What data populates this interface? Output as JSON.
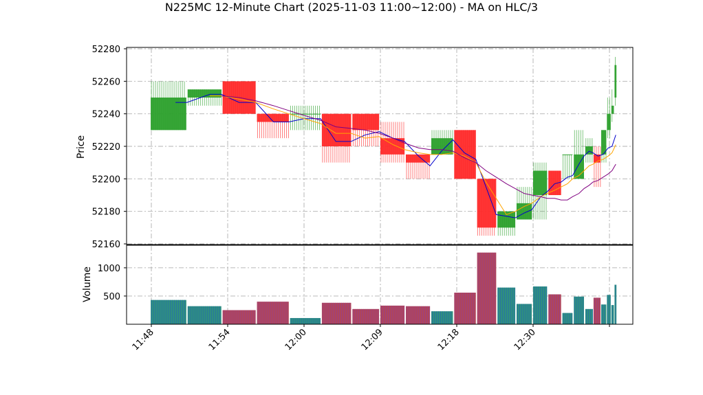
{
  "chart_data": {
    "type": "candlestick",
    "title": "N225MC 12-Minute Chart (2025-11-03 11:00~12:00) - MA on HLC/3",
    "price_axis": {
      "label": "Price",
      "ylim": [
        52160,
        52280
      ],
      "ticks": [
        52160,
        52180,
        52200,
        52220,
        52240,
        52260,
        52280
      ]
    },
    "volume_axis": {
      "label": "Volume",
      "ylim": [
        0,
        1400
      ],
      "ticks": [
        500,
        1000
      ]
    },
    "x_ticks": [
      {
        "x": 0,
        "label": "11:48"
      },
      {
        "x": 6,
        "label": "11:54"
      },
      {
        "x": 12,
        "label": "12:00"
      },
      {
        "x": 18,
        "label": "12:09"
      },
      {
        "x": 24,
        "label": "12:18"
      },
      {
        "x": 30,
        "label": "12:30"
      },
      {
        "x": 36,
        "label": ""
      }
    ],
    "grid": true,
    "colors": {
      "up": "#2ca02c",
      "down": "#ff2a2a",
      "ma_short": "#0000cc",
      "ma_mid": "#ffa500",
      "ma_long": "#800080",
      "vol_up": "#2f8f7f",
      "vol_down": "#b0455a"
    },
    "candles": [
      {
        "x0": -0.05,
        "x1": 2.75,
        "open": 52230,
        "high": 52260,
        "low": 52230,
        "close": 52250
      },
      {
        "x0": 2.85,
        "x1": 5.5,
        "open": 52250,
        "high": 52255,
        "low": 52245,
        "close": 52255
      },
      {
        "x0": 5.6,
        "x1": 8.2,
        "open": 52260,
        "high": 52260,
        "low": 52240,
        "close": 52240
      },
      {
        "x0": 8.3,
        "x1": 10.8,
        "open": 52240,
        "high": 52240,
        "low": 52225,
        "close": 52235
      },
      {
        "x0": 10.9,
        "x1": 13.3,
        "open": 52240,
        "high": 52245,
        "low": 52230,
        "close": 52240
      },
      {
        "x0": 13.4,
        "x1": 15.7,
        "open": 52240,
        "high": 52240,
        "low": 52210,
        "close": 52220
      },
      {
        "x0": 15.8,
        "x1": 17.9,
        "open": 52240,
        "high": 52240,
        "low": 52220,
        "close": 52230
      },
      {
        "x0": 18.0,
        "x1": 19.9,
        "open": 52225,
        "high": 52235,
        "low": 52210,
        "close": 52215
      },
      {
        "x0": 20.0,
        "x1": 21.9,
        "open": 52215,
        "high": 52215,
        "low": 52200,
        "close": 52210
      },
      {
        "x0": 22.0,
        "x1": 23.7,
        "open": 52215,
        "high": 52230,
        "low": 52215,
        "close": 52225
      },
      {
        "x0": 23.8,
        "x1": 25.5,
        "open": 52230,
        "high": 52230,
        "low": 52200,
        "close": 52200
      },
      {
        "x0": 25.6,
        "x1": 27.1,
        "open": 52200,
        "high": 52200,
        "low": 52165,
        "close": 52170
      },
      {
        "x0": 27.2,
        "x1": 28.6,
        "open": 52170,
        "high": 52180,
        "low": 52165,
        "close": 52180
      },
      {
        "x0": 28.7,
        "x1": 29.9,
        "open": 52175,
        "high": 52195,
        "low": 52175,
        "close": 52185
      },
      {
        "x0": 30.0,
        "x1": 31.1,
        "open": 52190,
        "high": 52210,
        "low": 52175,
        "close": 52205
      },
      {
        "x0": 31.2,
        "x1": 32.2,
        "open": 52205,
        "high": 52205,
        "low": 52190,
        "close": 52190
      },
      {
        "x0": 32.3,
        "x1": 33.1,
        "open": 52215,
        "high": 52215,
        "low": 52200,
        "close": 52215
      },
      {
        "x0": 33.2,
        "x1": 34.0,
        "open": 52200,
        "high": 52230,
        "low": 52200,
        "close": 52215
      },
      {
        "x0": 34.1,
        "x1": 34.7,
        "open": 52215,
        "high": 52225,
        "low": 52210,
        "close": 52220
      },
      {
        "x0": 34.75,
        "x1": 35.3,
        "open": 52215,
        "high": 52220,
        "low": 52195,
        "close": 52210
      },
      {
        "x0": 35.35,
        "x1": 35.75,
        "open": 52215,
        "high": 52230,
        "low": 52210,
        "close": 52230
      },
      {
        "x0": 35.8,
        "x1": 36.1,
        "open": 52230,
        "high": 52250,
        "low": 52225,
        "close": 52240
      },
      {
        "x0": 36.15,
        "x1": 36.35,
        "open": 52240,
        "high": 52255,
        "low": 52235,
        "close": 52245
      },
      {
        "x0": 36.4,
        "x1": 36.55,
        "open": 52250,
        "high": 52275,
        "low": 52245,
        "close": 52270
      }
    ],
    "volume": [
      {
        "x0": -0.05,
        "x1": 2.75,
        "value": 430,
        "dir": "up"
      },
      {
        "x0": 2.85,
        "x1": 5.5,
        "value": 320,
        "dir": "up"
      },
      {
        "x0": 5.6,
        "x1": 8.2,
        "value": 250,
        "dir": "down"
      },
      {
        "x0": 8.3,
        "x1": 10.8,
        "value": 400,
        "dir": "down"
      },
      {
        "x0": 10.9,
        "x1": 13.3,
        "value": 110,
        "dir": "up"
      },
      {
        "x0": 13.4,
        "x1": 15.7,
        "value": 380,
        "dir": "down"
      },
      {
        "x0": 15.8,
        "x1": 17.9,
        "value": 270,
        "dir": "down"
      },
      {
        "x0": 18.0,
        "x1": 19.9,
        "value": 330,
        "dir": "down"
      },
      {
        "x0": 20.0,
        "x1": 21.9,
        "value": 320,
        "dir": "down"
      },
      {
        "x0": 22.0,
        "x1": 23.7,
        "value": 230,
        "dir": "up"
      },
      {
        "x0": 23.8,
        "x1": 25.5,
        "value": 560,
        "dir": "down"
      },
      {
        "x0": 25.6,
        "x1": 27.1,
        "value": 1270,
        "dir": "down"
      },
      {
        "x0": 27.2,
        "x1": 28.6,
        "value": 650,
        "dir": "up"
      },
      {
        "x0": 28.7,
        "x1": 29.9,
        "value": 360,
        "dir": "up"
      },
      {
        "x0": 30.0,
        "x1": 31.1,
        "value": 670,
        "dir": "up"
      },
      {
        "x0": 31.2,
        "x1": 32.2,
        "value": 530,
        "dir": "down"
      },
      {
        "x0": 32.3,
        "x1": 33.1,
        "value": 200,
        "dir": "up"
      },
      {
        "x0": 33.2,
        "x1": 34.0,
        "value": 490,
        "dir": "up"
      },
      {
        "x0": 34.1,
        "x1": 34.7,
        "value": 270,
        "dir": "up"
      },
      {
        "x0": 34.75,
        "x1": 35.3,
        "value": 470,
        "dir": "down"
      },
      {
        "x0": 35.35,
        "x1": 35.75,
        "value": 350,
        "dir": "up"
      },
      {
        "x0": 35.8,
        "x1": 36.1,
        "value": 520,
        "dir": "up"
      },
      {
        "x0": 36.15,
        "x1": 36.35,
        "value": 340,
        "dir": "up"
      },
      {
        "x0": 36.4,
        "x1": 36.55,
        "value": 700,
        "dir": "up"
      }
    ],
    "ma_series": [
      {
        "color": "#0000cc",
        "x": [
          1.9,
          2.8,
          4.6,
          5.5,
          6.9,
          8.2,
          9.6,
          10.8,
          12.0,
          13.3,
          14.5,
          15.7,
          16.8,
          17.9,
          19.0,
          19.9,
          21.0,
          21.9,
          22.8,
          23.7,
          24.6,
          25.5,
          26.3,
          27.1,
          27.9,
          28.6,
          29.3,
          29.9,
          30.6,
          31.1,
          31.7,
          32.2,
          32.7,
          33.1,
          33.6,
          34.0,
          34.4,
          34.7,
          35.1,
          35.5,
          35.9,
          36.2,
          36.5
        ],
        "y": [
          52247,
          52247,
          52252,
          52252,
          52247,
          52247,
          52235,
          52235,
          52237,
          52237,
          52223,
          52223,
          52227,
          52229,
          52225,
          52223,
          52214,
          52208,
          52217,
          52224,
          52216,
          52212,
          52195,
          52178,
          52177,
          52176,
          52179,
          52181,
          52189,
          52192,
          52197,
          52198,
          52201,
          52202,
          52209,
          52214,
          52217,
          52216,
          52214,
          52215,
          52219,
          52220,
          52227
        ]
      },
      {
        "color": "#ffa500",
        "x": [
          4.6,
          5.5,
          6.9,
          8.2,
          9.6,
          10.8,
          12.0,
          13.3,
          14.5,
          15.7,
          16.8,
          17.9,
          19.0,
          19.9,
          21.0,
          21.9,
          22.8,
          23.7,
          24.6,
          25.5,
          26.3,
          27.1,
          27.9,
          28.6,
          29.3,
          29.9,
          30.6,
          31.1,
          31.7,
          32.2,
          32.7,
          33.1,
          33.6,
          34.0,
          34.4,
          34.7,
          35.1,
          35.5,
          35.9,
          36.2,
          36.5
        ],
        "y": [
          52251,
          52251,
          52249,
          52247,
          52243,
          52240,
          52237,
          52234,
          52228,
          52228,
          52225,
          52226,
          52221,
          52218,
          52216,
          52215,
          52215,
          52216,
          52214,
          52210,
          52198,
          52188,
          52178,
          52180,
          52183,
          52185,
          52189,
          52191,
          52193,
          52195,
          52197,
          52200,
          52202,
          52205,
          52208,
          52209,
          52211,
          52212,
          52214,
          52216,
          52221
        ]
      },
      {
        "color": "#800080",
        "x": [
          5.5,
          6.9,
          8.2,
          9.6,
          10.8,
          12.0,
          13.3,
          14.5,
          15.7,
          16.8,
          17.9,
          19.0,
          19.9,
          21.0,
          21.9,
          22.8,
          23.7,
          24.6,
          25.5,
          26.3,
          27.1,
          27.9,
          28.6,
          29.3,
          29.9,
          30.6,
          31.1,
          31.7,
          32.2,
          32.7,
          33.1,
          33.6,
          34.0,
          34.4,
          34.7,
          35.1,
          35.5,
          35.9,
          36.2,
          36.5
        ],
        "y": [
          52251,
          52250,
          52248,
          52245,
          52242,
          52239,
          52236,
          52232,
          52231,
          52230,
          52228,
          52225,
          52222,
          52219,
          52218,
          52218,
          52217,
          52213,
          52210,
          52205,
          52201,
          52197,
          52194,
          52191,
          52190,
          52189,
          52188,
          52188,
          52187,
          52187,
          52189,
          52191,
          52194,
          52196,
          52198,
          52199,
          52201,
          52203,
          52205,
          52209
        ]
      }
    ]
  }
}
